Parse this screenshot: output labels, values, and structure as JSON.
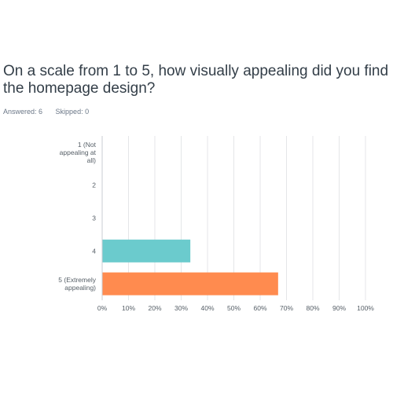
{
  "survey": {
    "question": "On a scale from 1 to 5, how visually appealing did you find the homepage design?",
    "answered_label": "Answered: 6",
    "skipped_label": "Skipped: 0"
  },
  "chart_data": {
    "type": "bar",
    "orientation": "horizontal",
    "categories": [
      [
        "1 (Not",
        "appealing at",
        "all)"
      ],
      [
        "2"
      ],
      [
        "3"
      ],
      [
        "4"
      ],
      [
        "5 (Extremely",
        "appealing)"
      ]
    ],
    "values": [
      0,
      0,
      0,
      33.33,
      66.67
    ],
    "bar_colors": [
      "#5fb7c2",
      "#5fb7c2",
      "#5fb7c2",
      "#6bcbcd",
      "#ff8b4f"
    ],
    "x_ticks": [
      "0%",
      "10%",
      "20%",
      "30%",
      "40%",
      "50%",
      "60%",
      "70%",
      "80%",
      "90%",
      "100%"
    ],
    "xlim": [
      0,
      100
    ],
    "grid": true,
    "legend": "none",
    "title": "",
    "xlabel": "",
    "ylabel": ""
  }
}
